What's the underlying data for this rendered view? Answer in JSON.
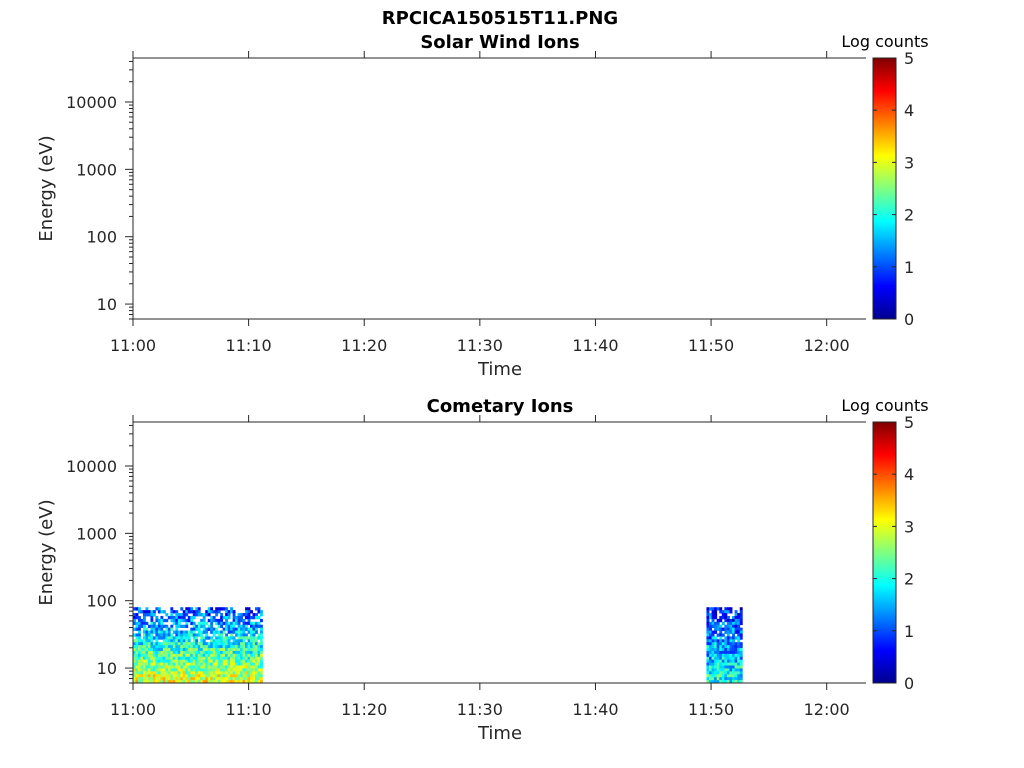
{
  "figure_title": "RPCICA150515T11.PNG",
  "chart_data": [
    {
      "type": "heatmap",
      "title": "Solar Wind Ions",
      "xlabel": "Time",
      "ylabel": "Energy (eV)",
      "x_tick_labels": [
        "11:00",
        "11:10",
        "11:20",
        "11:30",
        "11:40",
        "11:50",
        "12:00"
      ],
      "x_ticks_minutes": [
        0,
        10,
        20,
        30,
        40,
        50,
        60
      ],
      "xlim_minutes": [
        0,
        63.4
      ],
      "y_scale": "log",
      "y_tick_labels": [
        "10",
        "100",
        "1000",
        "10000"
      ],
      "y_ticks": [
        10,
        100,
        1000,
        10000
      ],
      "ylim": [
        6,
        45000
      ],
      "colorbar": {
        "label": "Log counts",
        "ticks": [
          "0",
          "1",
          "2",
          "3",
          "4",
          "5"
        ],
        "range": [
          0,
          5
        ],
        "colormap": "jet"
      },
      "data_blocks": []
    },
    {
      "type": "heatmap",
      "title": "Cometary Ions",
      "xlabel": "Time",
      "ylabel": "Energy (eV)",
      "x_tick_labels": [
        "11:00",
        "11:10",
        "11:20",
        "11:30",
        "11:40",
        "11:50",
        "12:00"
      ],
      "x_ticks_minutes": [
        0,
        10,
        20,
        30,
        40,
        50,
        60
      ],
      "xlim_minutes": [
        0,
        63.4
      ],
      "y_scale": "log",
      "y_tick_labels": [
        "10",
        "100",
        "1000",
        "10000"
      ],
      "y_ticks": [
        10,
        100,
        1000,
        10000
      ],
      "ylim": [
        6,
        45000
      ],
      "colorbar": {
        "label": "Log counts",
        "ticks": [
          "0",
          "1",
          "2",
          "3",
          "4",
          "5"
        ],
        "range": [
          0,
          5
        ],
        "colormap": "jet"
      },
      "data_blocks": [
        {
          "t_start": 0.0,
          "t_end": 11.2,
          "e_min": 6,
          "e_max": 80,
          "log_counts_low_energy": 3.0,
          "log_counts_high_energy": 1.0
        },
        {
          "t_start": 49.6,
          "t_end": 52.7,
          "e_min": 6,
          "e_max": 80,
          "log_counts_low_energy": 2.0,
          "log_counts_high_energy": 0.8
        }
      ]
    }
  ]
}
